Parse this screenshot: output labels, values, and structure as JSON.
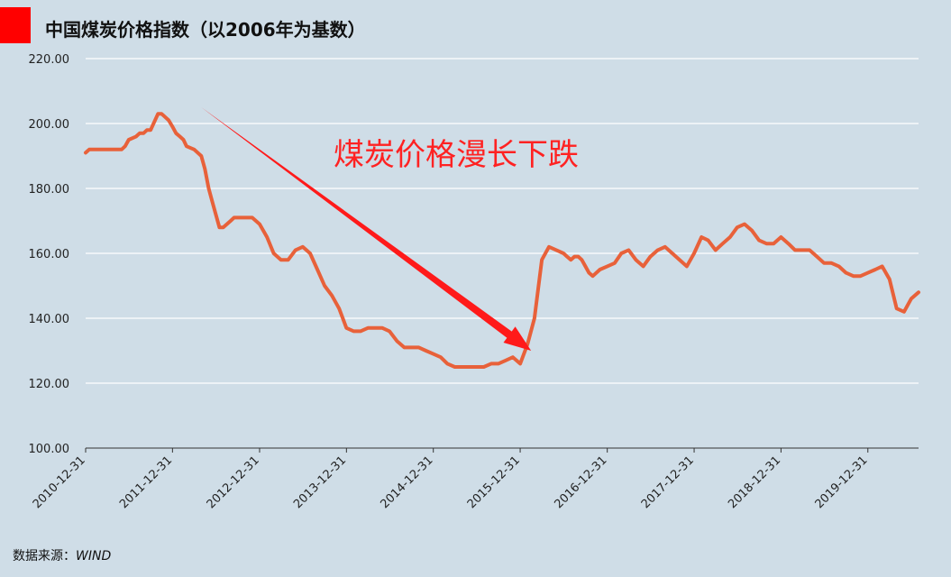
{
  "colors": {
    "background": "#cfdde7",
    "accent": "#ff0000",
    "line": "#e8613a",
    "arrow": "#ff1a1a",
    "annotation": "#ff2222",
    "grid": "#ffffff"
  },
  "source": {
    "label": "数据来源：",
    "value": "WIND"
  },
  "chart_data": {
    "type": "line",
    "title": "中国煤炭价格指数（以2006年为基数）",
    "xlabel": "",
    "ylabel": "",
    "ylim": [
      100,
      220
    ],
    "y_ticks": [
      "100.00",
      "120.00",
      "140.00",
      "160.00",
      "180.00",
      "200.00",
      "220.00"
    ],
    "x_ticks": [
      "2010-12-31",
      "2011-12-31",
      "2012-12-31",
      "2013-12-31",
      "2014-12-31",
      "2015-12-31",
      "2016-12-31",
      "2017-12-31",
      "2018-12-31",
      "2019-12-31"
    ],
    "x_range": [
      "2010-12-31",
      "2020-07-31"
    ],
    "grid": true,
    "legend": "none",
    "annotation": {
      "text": "煤炭价格漫长下跌",
      "arrow_from": [
        "2012-04-30",
        205
      ],
      "arrow_to": [
        "2016-02-15",
        130
      ]
    },
    "series": [
      {
        "x": [
          "2010-12-31",
          "2011-01-15",
          "2011-01-31",
          "2011-02-28",
          "2011-03-31",
          "2011-04-15",
          "2011-04-30",
          "2011-05-31",
          "2011-06-15",
          "2011-06-30",
          "2011-07-31",
          "2011-08-15",
          "2011-08-31",
          "2011-09-15",
          "2011-09-30",
          "2011-10-31",
          "2011-11-15",
          "2011-11-30",
          "2011-12-15",
          "2011-12-31",
          "2012-01-15",
          "2012-01-31",
          "2012-02-15",
          "2012-02-28",
          "2012-03-31",
          "2012-04-30",
          "2012-05-15",
          "2012-05-31",
          "2012-06-15",
          "2012-06-30",
          "2012-07-15",
          "2012-07-31",
          "2012-08-31",
          "2012-09-15",
          "2012-09-30",
          "2012-10-31",
          "2012-11-30",
          "2012-12-31",
          "2013-01-31",
          "2013-02-28",
          "2013-03-31",
          "2013-04-15",
          "2013-04-30",
          "2013-05-31",
          "2013-06-30",
          "2013-07-31",
          "2013-08-31",
          "2013-09-30",
          "2013-10-31",
          "2013-11-30",
          "2013-12-31",
          "2014-01-31",
          "2014-02-28",
          "2014-03-31",
          "2014-04-30",
          "2014-05-31",
          "2014-06-30",
          "2014-07-31",
          "2014-08-31",
          "2014-09-30",
          "2014-10-31",
          "2014-11-30",
          "2014-12-31",
          "2015-01-31",
          "2015-02-28",
          "2015-03-31",
          "2015-04-30",
          "2015-05-31",
          "2015-06-30",
          "2015-07-31",
          "2015-08-31",
          "2015-09-30",
          "2015-10-31",
          "2015-11-30",
          "2015-12-31",
          "2016-01-31",
          "2016-02-29",
          "2016-03-31",
          "2016-04-30",
          "2016-05-31",
          "2016-06-30",
          "2016-07-15",
          "2016-07-31",
          "2016-08-15",
          "2016-08-31",
          "2016-09-15",
          "2016-09-30",
          "2016-10-15",
          "2016-10-31",
          "2016-11-30",
          "2016-12-31",
          "2017-01-31",
          "2017-02-28",
          "2017-03-31",
          "2017-04-30",
          "2017-05-31",
          "2017-06-30",
          "2017-07-31",
          "2017-08-31",
          "2017-09-30",
          "2017-10-31",
          "2017-11-30",
          "2017-12-31",
          "2018-01-31",
          "2018-02-28",
          "2018-03-31",
          "2018-04-30",
          "2018-05-31",
          "2018-06-30",
          "2018-07-31",
          "2018-08-31",
          "2018-09-30",
          "2018-10-31",
          "2018-11-30",
          "2018-12-31",
          "2019-01-31",
          "2019-02-28",
          "2019-03-31",
          "2019-04-30",
          "2019-05-31",
          "2019-06-30",
          "2019-07-31",
          "2019-08-31",
          "2019-09-30",
          "2019-10-31",
          "2019-11-30",
          "2019-12-31",
          "2020-01-31",
          "2020-02-29",
          "2020-03-31",
          "2020-04-30",
          "2020-05-31",
          "2020-06-30",
          "2020-07-31"
        ],
        "values": [
          191,
          192,
          192,
          192,
          192,
          192,
          192,
          192,
          193,
          195,
          196,
          197,
          197,
          198,
          198,
          203,
          203,
          202,
          201,
          199,
          197,
          196,
          195,
          193,
          192,
          190,
          186,
          180,
          176,
          172,
          168,
          168,
          170,
          171,
          171,
          171,
          171,
          169,
          165,
          160,
          158,
          158,
          158,
          161,
          162,
          160,
          155,
          150,
          147,
          143,
          137,
          136,
          136,
          137,
          137,
          137,
          136,
          133,
          131,
          131,
          131,
          130,
          129,
          128,
          126,
          125,
          125,
          125,
          125,
          125,
          126,
          126,
          127,
          128,
          126,
          132,
          140,
          158,
          162,
          161,
          160,
          159,
          158,
          159,
          159,
          158,
          156,
          154,
          153,
          155,
          156,
          157,
          160,
          161,
          158,
          156,
          159,
          161,
          162,
          160,
          158,
          156,
          160,
          165,
          164,
          161,
          163,
          165,
          168,
          169,
          167,
          164,
          163,
          163,
          165,
          163,
          161,
          161,
          161,
          159,
          157,
          157,
          156,
          154,
          153,
          153,
          154,
          155,
          156,
          152,
          143,
          142,
          146,
          148
        ]
      }
    ]
  }
}
